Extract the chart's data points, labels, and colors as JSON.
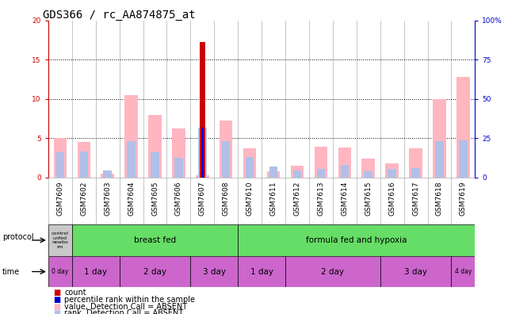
{
  "title": "GDS366 / rc_AA874875_at",
  "samples": [
    "GSM7609",
    "GSM7602",
    "GSM7603",
    "GSM7604",
    "GSM7605",
    "GSM7606",
    "GSM7607",
    "GSM7608",
    "GSM7610",
    "GSM7611",
    "GSM7612",
    "GSM7613",
    "GSM7614",
    "GSM7615",
    "GSM7616",
    "GSM7617",
    "GSM7618",
    "GSM7619"
  ],
  "pink_bars": [
    5.0,
    4.5,
    0.5,
    10.5,
    8.0,
    6.2,
    0.3,
    7.2,
    3.7,
    0.8,
    1.5,
    3.9,
    3.8,
    2.4,
    1.8,
    3.7,
    10.0,
    12.8
  ],
  "blue_bars": [
    3.2,
    3.3,
    0.9,
    4.6,
    3.2,
    2.5,
    6.3,
    4.6,
    2.6,
    1.4,
    0.9,
    1.1,
    1.6,
    0.8,
    1.1,
    1.2,
    4.6,
    4.7
  ],
  "red_bars": [
    0.0,
    0.0,
    0.0,
    0.0,
    0.0,
    0.0,
    17.2,
    0.0,
    0.0,
    0.0,
    0.0,
    0.0,
    0.0,
    0.0,
    0.0,
    0.0,
    0.0,
    0.0
  ],
  "dark_blue_bars": [
    0.0,
    0.0,
    0.0,
    0.0,
    0.0,
    0.0,
    6.3,
    0.0,
    0.0,
    0.0,
    0.0,
    0.0,
    0.0,
    0.0,
    0.0,
    0.0,
    0.0,
    0.0
  ],
  "ylim_left": [
    0,
    20
  ],
  "ylim_right": [
    0,
    100
  ],
  "yticks_left": [
    0,
    5,
    10,
    15,
    20
  ],
  "yticks_right": [
    0,
    25,
    50,
    75,
    100
  ],
  "protocol_segments": [
    {
      "start": 0,
      "end": 1,
      "label": "control\nunfed\nnewbo\nrm",
      "color": "#c8c8c8"
    },
    {
      "start": 1,
      "end": 8,
      "label": "breast fed",
      "color": "#66dd66"
    },
    {
      "start": 8,
      "end": 18,
      "label": "formula fed and hypoxia",
      "color": "#66dd66"
    }
  ],
  "time_segments": [
    {
      "start": 0,
      "end": 1,
      "label": "0 day",
      "color": "#cc66cc"
    },
    {
      "start": 1,
      "end": 3,
      "label": "1 day",
      "color": "#cc66cc"
    },
    {
      "start": 3,
      "end": 6,
      "label": "2 day",
      "color": "#cc66cc"
    },
    {
      "start": 6,
      "end": 8,
      "label": "3 day",
      "color": "#cc66cc"
    },
    {
      "start": 8,
      "end": 10,
      "label": "1 day",
      "color": "#cc66cc"
    },
    {
      "start": 10,
      "end": 14,
      "label": "2 day",
      "color": "#cc66cc"
    },
    {
      "start": 14,
      "end": 17,
      "label": "3 day",
      "color": "#cc66cc"
    },
    {
      "start": 17,
      "end": 18,
      "label": "4 day",
      "color": "#cc66cc"
    }
  ],
  "legend_items": [
    {
      "color": "#cc0000",
      "label": "count"
    },
    {
      "color": "#0000cc",
      "label": "percentile rank within the sample"
    },
    {
      "color": "#FFB6C1",
      "label": "value, Detection Call = ABSENT"
    },
    {
      "color": "#b0c0e8",
      "label": "rank, Detection Call = ABSENT"
    }
  ],
  "bg_color": "#ffffff",
  "plot_bg": "#ffffff",
  "sample_bg": "#d8d8d8",
  "left_axis_color": "#cc0000",
  "right_axis_color": "#0000cc",
  "title_fontsize": 10,
  "tick_fontsize": 6.5,
  "label_fontsize": 7.5,
  "legend_fontsize": 7,
  "dotted_lines": [
    5,
    10,
    15
  ],
  "n_samples": 18
}
